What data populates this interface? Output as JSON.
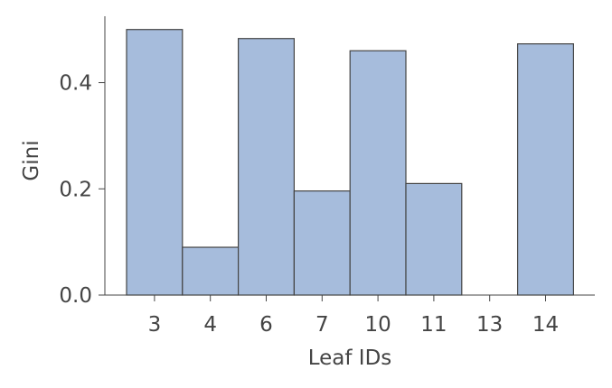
{
  "chart_data": {
    "type": "bar",
    "title": "",
    "xlabel": "Leaf IDs",
    "ylabel": "Gini",
    "categories": [
      "3",
      "4",
      "6",
      "7",
      "10",
      "11",
      "13",
      "14"
    ],
    "values": [
      0.5,
      0.09,
      0.483,
      0.196,
      0.46,
      0.21,
      0.0,
      0.473
    ],
    "yticks": [
      "0.0",
      "0.2",
      "0.4"
    ],
    "ytick_values": [
      0.0,
      0.2,
      0.4
    ],
    "ylim": [
      0,
      0.525
    ],
    "grid": false,
    "colors": {
      "bar_fill": "#a6bcdc",
      "bar_edge": "#444444",
      "axis": "#444444"
    }
  }
}
